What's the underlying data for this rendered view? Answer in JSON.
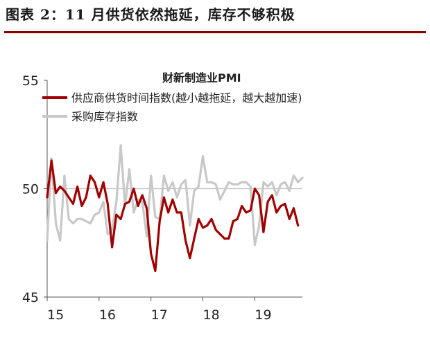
{
  "heading": "图表 2：11 月供货依然拖延，库存不够积极",
  "chart_data": {
    "type": "line",
    "title": "财新制造业PMI",
    "xlabel": "",
    "ylabel": "",
    "x_ticks": [
      "15",
      "16",
      "17",
      "18",
      "19"
    ],
    "y_ticks": [
      "55",
      "50",
      "45"
    ],
    "ylim": [
      45,
      55
    ],
    "xlim": [
      2015.0,
      2019.917
    ],
    "reference_line": 50,
    "grid": false,
    "legend_position": "top-left",
    "colors": {
      "supplier": "#a00000",
      "inventory": "#c8c8c8",
      "reference": "#bdbdbd"
    },
    "series": [
      {
        "name": "供应商供货时间指数(越小越拖延，越大越加速)",
        "x": [
          2015.0,
          2015.083,
          2015.167,
          2015.25,
          2015.333,
          2015.417,
          2015.5,
          2015.583,
          2015.667,
          2015.75,
          2015.833,
          2015.917,
          2016.0,
          2016.083,
          2016.167,
          2016.25,
          2016.333,
          2016.417,
          2016.5,
          2016.583,
          2016.667,
          2016.75,
          2016.833,
          2016.917,
          2017.0,
          2017.083,
          2017.167,
          2017.25,
          2017.333,
          2017.417,
          2017.5,
          2017.583,
          2017.667,
          2017.75,
          2017.833,
          2017.917,
          2018.0,
          2018.083,
          2018.167,
          2018.25,
          2018.333,
          2018.417,
          2018.5,
          2018.583,
          2018.667,
          2018.75,
          2018.833,
          2018.917,
          2019.0,
          2019.083,
          2019.167,
          2019.25,
          2019.333,
          2019.417,
          2019.5,
          2019.583,
          2019.667,
          2019.75,
          2019.833
        ],
        "values": [
          49.6,
          51.3,
          49.8,
          50.1,
          49.9,
          49.6,
          49.3,
          50.1,
          49.2,
          49.6,
          50.6,
          50.3,
          49.6,
          50.3,
          49.3,
          47.3,
          48.8,
          48.6,
          49.3,
          49.4,
          50.0,
          49.2,
          49.7,
          49.1,
          47.0,
          46.2,
          48.5,
          49.6,
          48.9,
          49.5,
          48.9,
          48.9,
          47.6,
          46.8,
          47.7,
          48.6,
          48.2,
          48.3,
          48.6,
          48.1,
          47.9,
          47.7,
          47.7,
          48.5,
          48.6,
          49.2,
          48.9,
          49.0,
          50.0,
          49.7,
          48.0,
          49.4,
          49.7,
          48.9,
          49.2,
          49.3,
          48.6,
          49.1,
          48.3
        ]
      },
      {
        "name": "采购库存指数",
        "x": [
          2015.0,
          2015.083,
          2015.167,
          2015.25,
          2015.333,
          2015.417,
          2015.5,
          2015.583,
          2015.667,
          2015.75,
          2015.833,
          2015.917,
          2016.0,
          2016.083,
          2016.167,
          2016.25,
          2016.333,
          2016.417,
          2016.5,
          2016.583,
          2016.667,
          2016.75,
          2016.833,
          2016.917,
          2017.0,
          2017.083,
          2017.167,
          2017.25,
          2017.333,
          2017.417,
          2017.5,
          2017.583,
          2017.667,
          2017.75,
          2017.833,
          2017.917,
          2018.0,
          2018.083,
          2018.167,
          2018.25,
          2018.333,
          2018.417,
          2018.5,
          2018.583,
          2018.667,
          2018.75,
          2018.833,
          2018.917,
          2019.0,
          2019.083,
          2019.167,
          2019.25,
          2019.333,
          2019.417,
          2019.5,
          2019.583,
          2019.667,
          2019.75,
          2019.833,
          2019.917
        ],
        "values": [
          47.6,
          51.4,
          48.4,
          47.6,
          50.6,
          48.6,
          48.4,
          48.6,
          48.6,
          48.5,
          48.4,
          48.8,
          48.9,
          49.4,
          47.9,
          48.1,
          49.4,
          52.0,
          49.2,
          50.9,
          48.9,
          49.5,
          49.4,
          47.8,
          50.6,
          48.7,
          48.6,
          50.6,
          49.9,
          50.3,
          49.6,
          50.2,
          50.4,
          48.3,
          49.9,
          50.1,
          51.5,
          50.3,
          50.3,
          50.2,
          49.5,
          49.9,
          50.3,
          50.2,
          50.2,
          50.3,
          50.3,
          50.1,
          47.4,
          48.3,
          50.3,
          50.1,
          50.3,
          49.7,
          50.2,
          50.3,
          49.9,
          50.6,
          50.3,
          50.5
        ]
      }
    ]
  }
}
